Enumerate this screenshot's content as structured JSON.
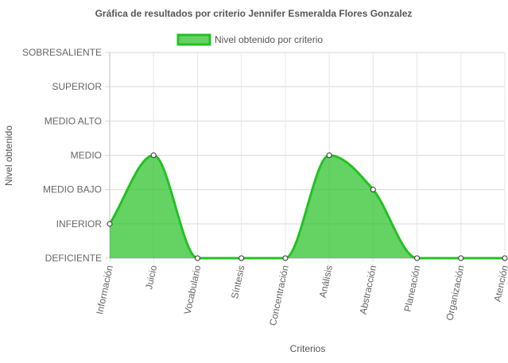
{
  "chart_data": {
    "type": "area",
    "title": "Gráfica de resultados por criterio Jennifer Esmeralda Flores Gonzalez",
    "xlabel": "Criterios",
    "ylabel": "Nivel obtenido",
    "levels": [
      "DEFICIENTE",
      "INFERIOR",
      "MEDIO BAJO",
      "MEDIO",
      "MEDIO ALTO",
      "SUPERIOR",
      "SOBRESALIENTE"
    ],
    "categories": [
      "Información",
      "Juicio",
      "Vocabulario",
      "Síntesis",
      "Concentración",
      "Análisis",
      "Abstracción",
      "Planeación",
      "Organización",
      "Atención"
    ],
    "series": [
      {
        "name": "Nivel obtenido por criterio",
        "values": [
          1,
          3,
          0,
          0,
          0,
          3,
          2,
          0,
          0,
          0
        ],
        "color": "#22c122",
        "fill": "rgba(34,193,34,0.7)"
      }
    ],
    "ylim": [
      0,
      6
    ],
    "grid": true,
    "legend_position": "top"
  }
}
